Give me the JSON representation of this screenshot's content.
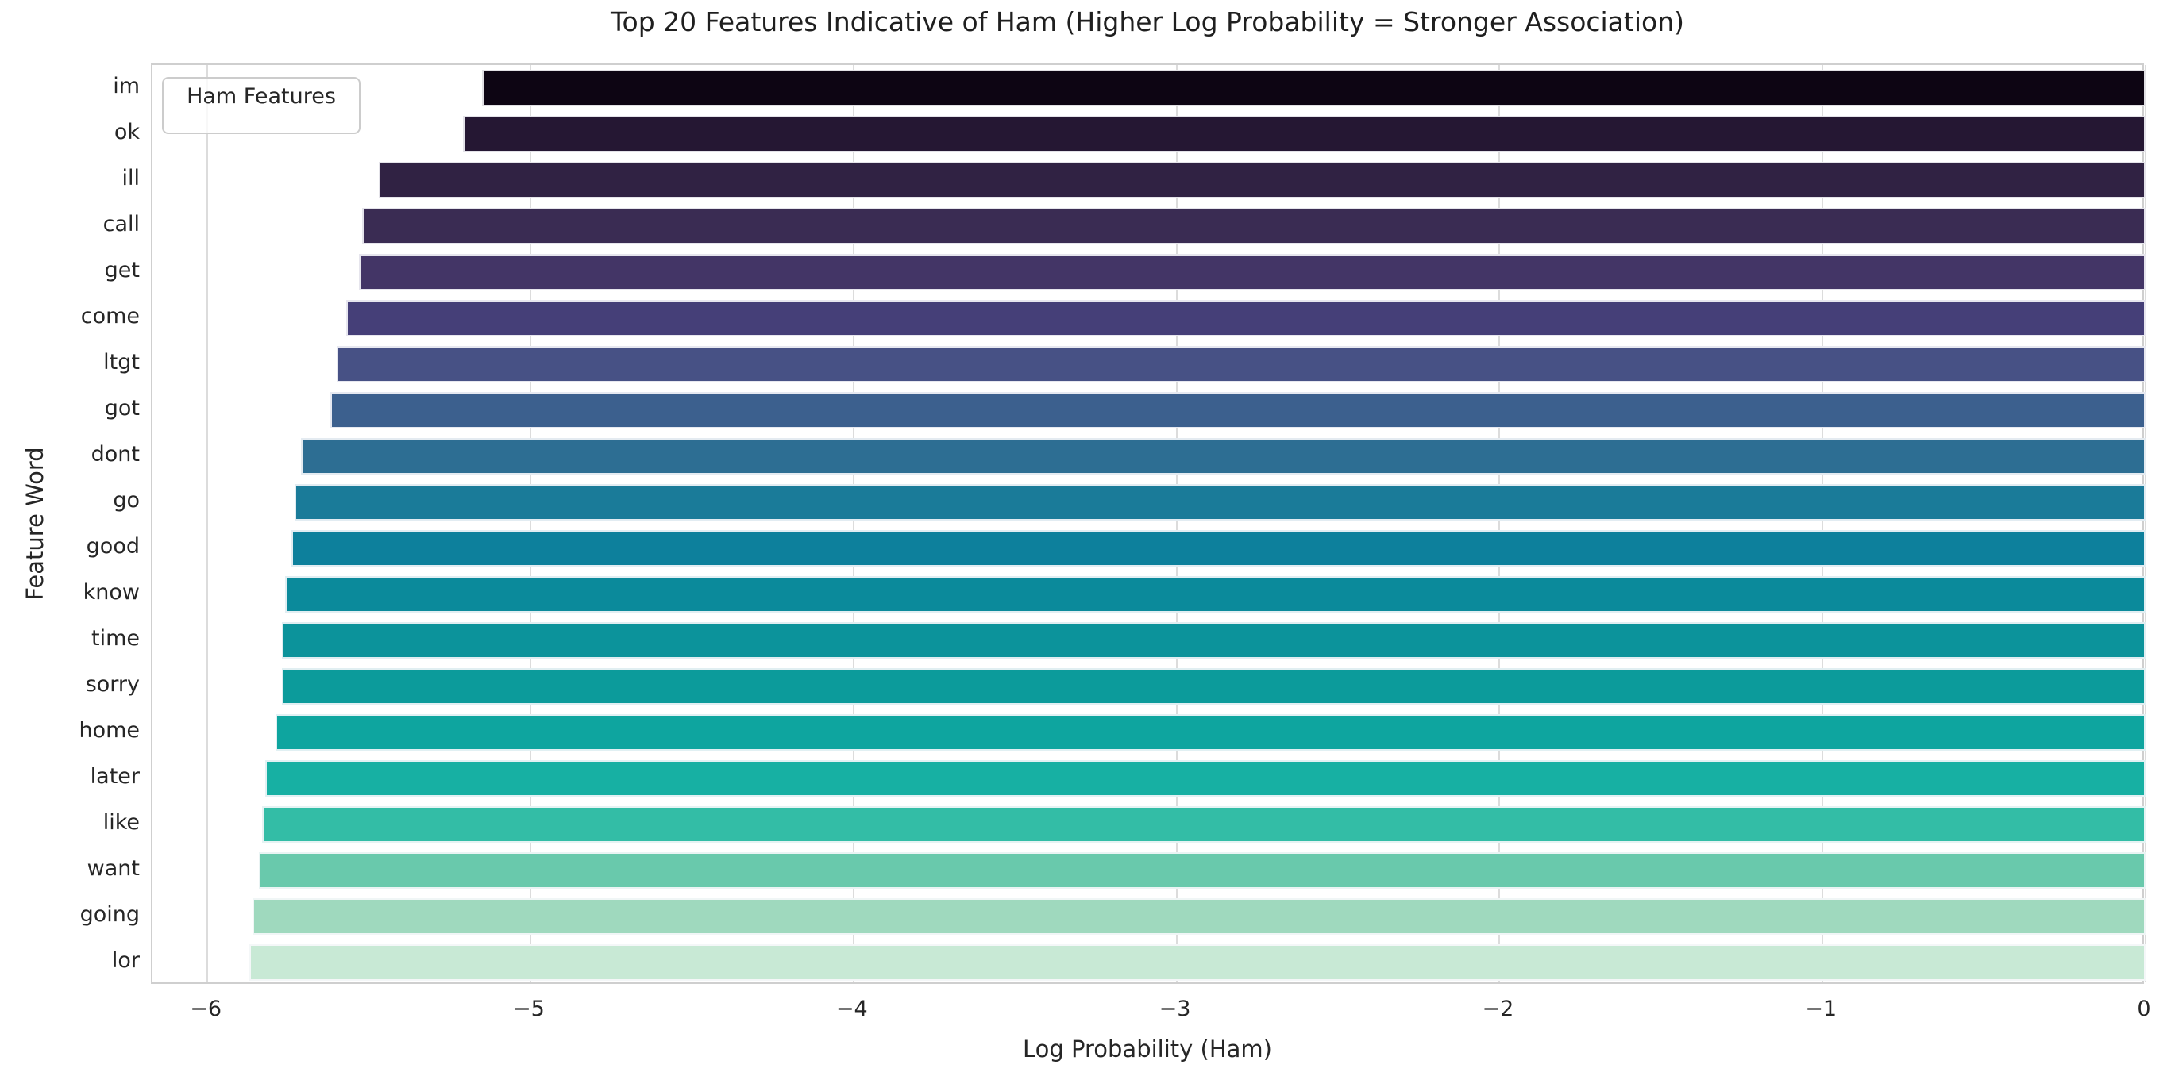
{
  "chart_data": {
    "type": "bar",
    "orientation": "horizontal",
    "title": "Top 20 Features Indicative of Ham (Higher Log Probability = Stronger Association)",
    "xlabel": "Log Probability (Ham)",
    "ylabel": "Feature Word",
    "legend": {
      "label": "Ham Features",
      "position": "upper left"
    },
    "colormap": "mako",
    "grid": true,
    "xlim": [
      -6.17,
      0
    ],
    "xticks": [
      -6,
      -5,
      -4,
      -3,
      -2,
      -1,
      0
    ],
    "xtick_labels": [
      "−6",
      "−5",
      "−4",
      "−3",
      "−2",
      "−1",
      "0"
    ],
    "categories": [
      "im",
      "ok",
      "ill",
      "call",
      "get",
      "come",
      "ltgt",
      "got",
      "dont",
      "go",
      "good",
      "know",
      "time",
      "sorry",
      "home",
      "later",
      "like",
      "want",
      "going",
      "lor"
    ],
    "values": [
      -5.15,
      -5.21,
      -5.47,
      -5.52,
      -5.53,
      -5.57,
      -5.6,
      -5.62,
      -5.71,
      -5.73,
      -5.74,
      -5.76,
      -5.77,
      -5.77,
      -5.79,
      -5.82,
      -5.83,
      -5.84,
      -5.86,
      -5.87
    ],
    "bar_colors": [
      "#0d0513",
      "#251733",
      "#302243",
      "#3a2c53",
      "#433566",
      "#453f78",
      "#475185",
      "#3c608e",
      "#2d6e93",
      "#1a7b99",
      "#0d809c",
      "#0b8a9b",
      "#0c939b",
      "#0c9b9b",
      "#0ea59f",
      "#17b0a3",
      "#33bda6",
      "#69c9ac",
      "#9fd9be",
      "#c8e9d5"
    ]
  },
  "style_tokens": {
    "grid_color": "#dcdcdc",
    "spine_color": "#cfcfcf",
    "text_color": "#262626"
  }
}
